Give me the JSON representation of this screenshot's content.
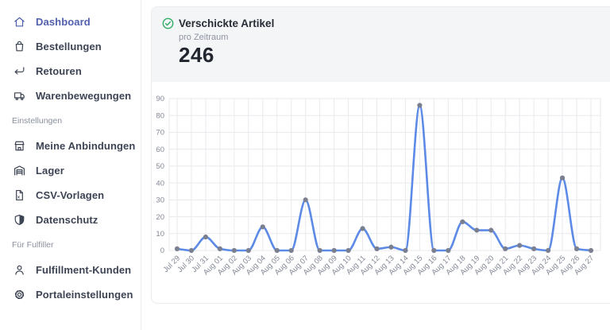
{
  "sidebar": {
    "active_color": "#5160ad",
    "items": [
      {
        "type": "item",
        "label": "Dashboard",
        "icon": "home-icon",
        "active": true
      },
      {
        "type": "item",
        "label": "Bestellungen",
        "icon": "bag-icon",
        "active": false
      },
      {
        "type": "item",
        "label": "Retouren",
        "icon": "return-arrow-icon",
        "active": false
      },
      {
        "type": "item",
        "label": "Warenbewegungen",
        "icon": "truck-icon",
        "active": false
      },
      {
        "type": "section",
        "label": "Einstellungen"
      },
      {
        "type": "item",
        "label": "Meine Anbindungen",
        "icon": "store-icon",
        "active": false
      },
      {
        "type": "item",
        "label": "Lager",
        "icon": "warehouse-icon",
        "active": false
      },
      {
        "type": "item",
        "label": "CSV-Vorlagen",
        "icon": "csv-file-icon",
        "active": false
      },
      {
        "type": "item",
        "label": "Datenschutz",
        "icon": "shield-icon",
        "active": false
      },
      {
        "type": "section",
        "label": "Für Fulfiller"
      },
      {
        "type": "item",
        "label": "Fulfillment-Kunden",
        "icon": "user-icon",
        "active": false
      },
      {
        "type": "item",
        "label": "Portaleinstellungen",
        "icon": "gear-icon",
        "active": false
      }
    ]
  },
  "stat_card": {
    "status_icon": "check-circle-icon",
    "status_color": "#2fac66",
    "title": "Verschickte Artikel",
    "subtitle": "pro Zeitraum",
    "value": "246"
  },
  "chart_data": {
    "type": "line",
    "title": "Verschickte Artikel pro Zeitraum",
    "xlabel": "",
    "ylabel": "",
    "categories": [
      "Jul 29",
      "Jul 30",
      "Jul 31",
      "Aug 01",
      "Aug 02",
      "Aug 03",
      "Aug 04",
      "Aug 05",
      "Aug 06",
      "Aug 07",
      "Aug 08",
      "Aug 09",
      "Aug 10",
      "Aug 11",
      "Aug 12",
      "Aug 13",
      "Aug 14",
      "Aug 15",
      "Aug 16",
      "Aug 17",
      "Aug 18",
      "Aug 19",
      "Aug 20",
      "Aug 21",
      "Aug 22",
      "Aug 23",
      "Aug 24",
      "Aug 25",
      "Aug 26",
      "Aug 27"
    ],
    "values": [
      1,
      0,
      8,
      1,
      0,
      0,
      14,
      0,
      0,
      30,
      0,
      0,
      0,
      13,
      1,
      2,
      0,
      86,
      0,
      0,
      17,
      12,
      12,
      1,
      3,
      1,
      0,
      43,
      1,
      0
    ],
    "ylim": [
      0,
      90
    ],
    "ytick_step": 10,
    "grid": true,
    "legend": "none",
    "line_color": "#5c8ae6",
    "point_color": "#7b8090",
    "grid_color": "#e9eaee",
    "tick_color": "#838896"
  }
}
